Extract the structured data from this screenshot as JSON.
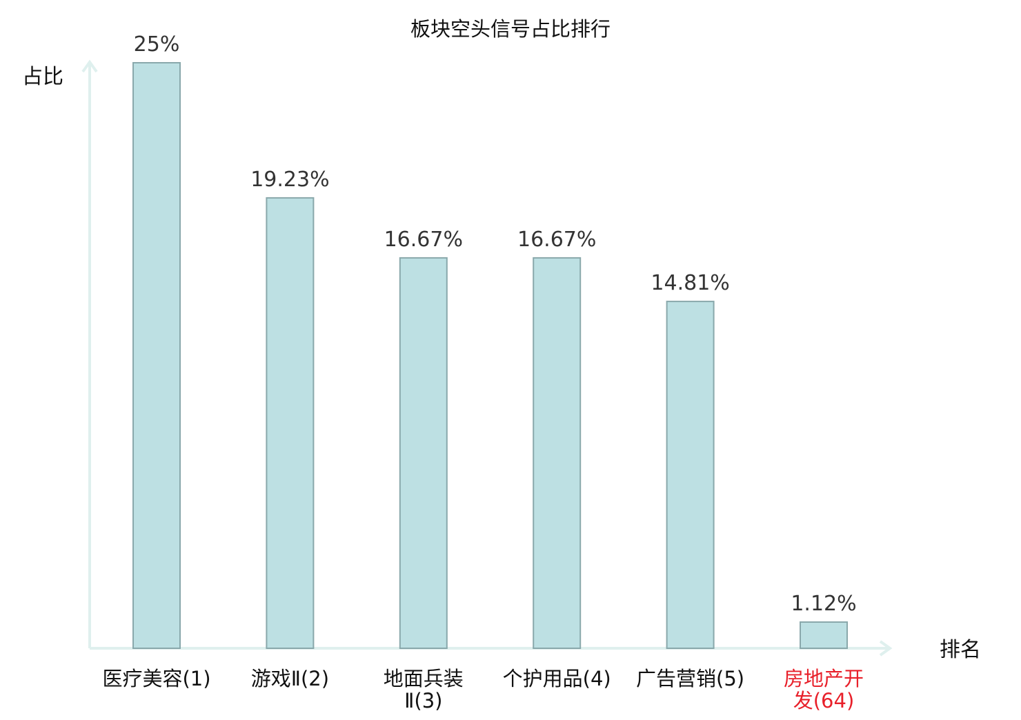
{
  "chart_data": {
    "type": "bar",
    "title": "板块空头信号占比排行",
    "ylabel": "占比",
    "xlabel": "排名",
    "categories": [
      [
        "医疗美容(1)"
      ],
      [
        "游戏Ⅱ(2)"
      ],
      [
        "地面兵装",
        "Ⅱ(3)"
      ],
      [
        "个护用品(4)"
      ],
      [
        "广告营销(5)"
      ],
      [
        "房地产开",
        "发(64)"
      ]
    ],
    "values": [
      25,
      19.23,
      16.67,
      16.67,
      14.81,
      1.12
    ],
    "value_labels": [
      "25%",
      "19.23%",
      "16.67%",
      "16.67%",
      "14.81%",
      "1.12%"
    ],
    "highlight_index": 5,
    "ylim": [
      0,
      25
    ],
    "grid": false,
    "colors": {
      "bar_fill": "#bde0e3",
      "bar_stroke": "#89a8ab",
      "axis": "#dff0ee",
      "text": "#333333",
      "highlight": "#e8202a"
    }
  }
}
